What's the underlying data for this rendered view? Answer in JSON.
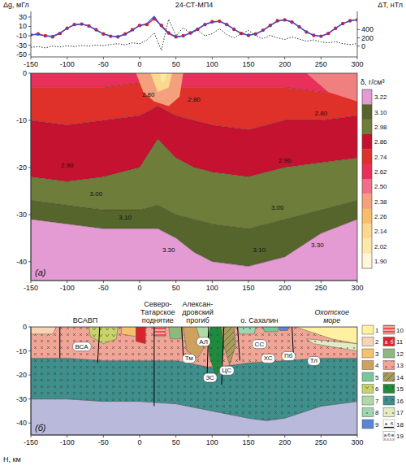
{
  "chart_data": [
    {
      "type": "line",
      "title": "24-СТ-МП4",
      "y_label": "Δg, мГл",
      "y2_label": "ΔT, нТл",
      "x": [
        -150,
        -140,
        -130,
        -120,
        -110,
        -100,
        -90,
        -80,
        -70,
        -60,
        -50,
        -40,
        -30,
        -20,
        -10,
        0,
        10,
        20,
        30,
        40,
        50,
        60,
        70,
        80,
        90,
        100,
        110,
        120,
        130,
        140,
        150,
        160,
        170,
        180,
        190,
        200,
        210,
        220,
        230,
        240,
        250,
        260,
        270,
        280,
        290,
        300
      ],
      "xlim": [
        -150,
        300
      ],
      "xticks": [
        -150,
        -100,
        -50,
        0,
        50,
        100,
        150,
        200,
        250,
        300
      ],
      "ylim": [
        -55,
        42
      ],
      "yticks": [
        -50,
        -30,
        -10,
        10,
        30
      ],
      "y2lim": [
        -260,
        840
      ],
      "y2ticks": [
        0,
        200,
        400
      ],
      "series": [
        {
          "color": "#e0202a",
          "marker": "circle",
          "line_style": "solid",
          "values": [
            -8,
            -6,
            -10,
            -12,
            -5,
            6,
            14,
            15,
            11,
            3,
            -6,
            -11,
            -12,
            -6,
            3,
            12,
            14,
            26,
            12,
            -4,
            -12,
            -10,
            -4,
            4,
            14,
            20,
            21,
            14,
            4,
            -5,
            -9,
            -6,
            2,
            12,
            22,
            24,
            19,
            9,
            -2,
            -9,
            -11,
            -5,
            6,
            16,
            22,
            24
          ]
        },
        {
          "color": "#2b50d8",
          "line_style": "solid",
          "values": [
            -8,
            -7,
            -10,
            -11,
            -4,
            6,
            13,
            15,
            11,
            2,
            -6,
            -10,
            -12,
            -7,
            2,
            12,
            16,
            31,
            10,
            -5,
            -13,
            -10,
            -4,
            5,
            14,
            19,
            21,
            14,
            4,
            -5,
            -9,
            -6,
            1,
            12,
            21,
            24,
            20,
            9,
            -2,
            -9,
            -11,
            -5,
            6,
            16,
            22,
            25
          ]
        },
        {
          "color": "#333333",
          "line_style": "dotted",
          "axis": "y2",
          "values": [
            -30,
            -10,
            -40,
            0,
            -20,
            10,
            -10,
            20,
            0,
            30,
            10,
            40,
            60,
            30,
            80,
            60,
            150,
            320,
            -100,
            650,
            250,
            450,
            300,
            380,
            250,
            300,
            420,
            280,
            200,
            300,
            380,
            250,
            180,
            260,
            200,
            160,
            220,
            170,
            120,
            150,
            100,
            80,
            110,
            60,
            40,
            60
          ]
        }
      ]
    },
    {
      "type": "section",
      "panel_label": "(а)",
      "xlim": [
        -150,
        300
      ],
      "xticks": [
        -150,
        -100,
        -50,
        0,
        50,
        100,
        150,
        200,
        250,
        300
      ],
      "ylim": [
        -44,
        0
      ],
      "yticks": [
        0,
        -10,
        -20,
        -30,
        -40
      ],
      "x": [
        -150,
        -100,
        -50,
        0,
        25,
        50,
        75,
        100,
        150,
        200,
        250,
        300
      ],
      "layers": [
        {
          "color": "#e8305a",
          "bottom": [
            -3,
            -3,
            -3,
            -2,
            -2,
            -3,
            -3,
            -3,
            -3,
            -3,
            -4,
            -4
          ]
        },
        {
          "color": "#e0302a",
          "bottom": [
            -10,
            -11,
            -10,
            -9,
            -7,
            -9,
            -10,
            -11,
            -12,
            -10,
            -10,
            -9
          ]
        },
        {
          "color": "#c41230",
          "bottom": [
            -22,
            -23,
            -22,
            -20,
            -14,
            -18,
            -20,
            -21,
            -22,
            -20,
            -19,
            -18
          ]
        },
        {
          "color": "#6f7d3a",
          "bottom": [
            -27,
            -28,
            -29,
            -29,
            -28,
            -30,
            -31,
            -32,
            -33,
            -31,
            -29,
            -27
          ]
        },
        {
          "color": "#56652c",
          "bottom": [
            -31,
            -32,
            -33,
            -33,
            -33,
            -35,
            -38,
            -40,
            -41,
            -39,
            -34,
            -31
          ]
        },
        {
          "color": "#e49ad2",
          "bottom": null
        }
      ],
      "patches": [
        {
          "color": "#f4a07c",
          "x": [
            -5,
            60,
            55,
            40,
            20,
            5
          ],
          "y": [
            0,
            0,
            -5,
            -7,
            -6,
            -4
          ]
        },
        {
          "color": "#fbd88e",
          "x": [
            15,
            45,
            40,
            25
          ],
          "y": [
            0,
            0,
            -3,
            -4
          ]
        },
        {
          "color": "#f08080",
          "x": [
            230,
            300,
            300,
            260
          ],
          "y": [
            0,
            0,
            -6,
            -4
          ]
        },
        {
          "color": "#fde8a8",
          "x": [
            28,
            38,
            35,
            30
          ],
          "y": [
            0,
            0,
            -1.5,
            -2
          ]
        }
      ],
      "contour_labels": [
        {
          "x": -100,
          "y": -20,
          "label": "2.90"
        },
        {
          "x": -60,
          "y": -26,
          "label": "3.00"
        },
        {
          "x": -20,
          "y": -31,
          "label": "3.10"
        },
        {
          "x": 40,
          "y": -38,
          "label": "3.30"
        },
        {
          "x": 12,
          "y": -5,
          "label": "2.80"
        },
        {
          "x": 75,
          "y": -6,
          "label": "2.80"
        },
        {
          "x": 200,
          "y": -19,
          "label": "2.90"
        },
        {
          "x": 250,
          "y": -9,
          "label": "2.80"
        },
        {
          "x": 190,
          "y": -29,
          "label": "3.00"
        },
        {
          "x": 165,
          "y": -38,
          "label": "3.10"
        },
        {
          "x": 245,
          "y": -37,
          "label": "3.30"
        }
      ],
      "colorbar": {
        "label": "δ, г/см³",
        "ticks": [
          3.22,
          {
            "value": 3.1,
            "label": "3.10"
          },
          2.98,
          2.86,
          2.74,
          2.62,
          {
            "value": 2.5,
            "label": "2.50"
          },
          2.38,
          2.26,
          2.14,
          2.02,
          {
            "value": 1.9,
            "label": "1.90"
          }
        ],
        "colors": [
          "#e49ad2",
          "#56652c",
          "#6f7d3a",
          "#c41230",
          "#e0302a",
          "#e8305a",
          "#ef6f8a",
          "#f4a07c",
          "#f7bd6a",
          "#fbd88e",
          "#fde8a8",
          "#fff6dc"
        ]
      }
    },
    {
      "type": "section",
      "panel_label": "(б)",
      "y_label": "H, км",
      "xlim": [
        -150,
        300
      ],
      "xticks": [
        -150,
        -100,
        -50,
        0,
        50,
        100,
        150,
        200,
        250,
        300
      ],
      "ylim": [
        -45,
        0
      ],
      "yticks": [
        0,
        -10,
        -20,
        -30,
        -40
      ],
      "regions": [
        {
          "lines": [
            "ВСАВП"
          ],
          "x": -75
        },
        {
          "lines": [
            "Северо-",
            "Татарское",
            "поднятие"
          ],
          "x": 25
        },
        {
          "lines": [
            "Алексан-",
            "дровский",
            "прогиб"
          ],
          "x": 80
        },
        {
          "lines": [
            "о. Сахалин"
          ],
          "x": 165
        },
        {
          "lines": [
            "Охотское",
            "море"
          ],
          "x": 265
        }
      ],
      "bodies": [
        {
          "color": "#b9b9dc",
          "x": [
            -150,
            -100,
            -50,
            0,
            50,
            100,
            150,
            175,
            200,
            250,
            300,
            300,
            -150
          ],
          "y": [
            -30,
            -30,
            -31,
            -31,
            -32,
            -35,
            -38,
            -39,
            -38,
            -33,
            -31,
            -45,
            -45
          ]
        },
        {
          "color": "#3f8f8c",
          "marker": "x",
          "x": [
            -150,
            -100,
            -50,
            0,
            50,
            100,
            150,
            200,
            250,
            300,
            300,
            250,
            200,
            175,
            150,
            100,
            50,
            0,
            -50,
            -100,
            -150
          ],
          "y": [
            -13,
            -13,
            -14,
            -14,
            -14,
            -17,
            -15,
            -14,
            -13,
            -13,
            -31,
            -33,
            -38,
            -39,
            -38,
            -35,
            -32,
            -31,
            -31,
            -30,
            -30
          ]
        },
        {
          "color": "#f0a596",
          "marker": "x",
          "x": [
            -150,
            300,
            300,
            250,
            200,
            150,
            100,
            50,
            0,
            -50,
            -100,
            -150
          ],
          "y": [
            0,
            0,
            -13,
            -13,
            -14,
            -15,
            -17,
            -14,
            -14,
            -14,
            -13,
            -13
          ]
        },
        {
          "color": "#f7d4b4",
          "x": [
            -150,
            -115,
            -120,
            -150
          ],
          "y": [
            0,
            0,
            -3,
            -3
          ]
        },
        {
          "color": "#c8d36a",
          "marker": "v",
          "x": [
            -70,
            -30,
            -32,
            -50,
            -68
          ],
          "y": [
            0,
            0,
            -5,
            -7,
            -4
          ]
        },
        {
          "color": "#f5c26a",
          "x": [
            -25,
            -5,
            -5,
            -25
          ],
          "y": [
            0,
            0,
            -4,
            -3
          ]
        },
        {
          "color": "#d9232d",
          "x": [
            -5,
            8,
            8,
            -5
          ],
          "y": [
            0,
            0,
            -7,
            -6
          ]
        },
        {
          "color": "#e8524f",
          "marker": "hline",
          "x": [
            20,
            35,
            35,
            20
          ],
          "y": [
            0,
            0,
            -4,
            -4
          ]
        },
        {
          "color": "#8fb87f",
          "x": [
            40,
            58,
            58,
            42
          ],
          "y": [
            0,
            0,
            -5,
            -5
          ]
        },
        {
          "color": "#cfa15e",
          "x": [
            60,
            85,
            88,
            80,
            65
          ],
          "y": [
            0,
            0,
            -9,
            -13,
            -10
          ]
        },
        {
          "color": "#b0d9a8",
          "x": [
            78,
            98,
            96,
            84
          ],
          "y": [
            0,
            0,
            -8,
            -6
          ]
        },
        {
          "color": "#1f8a3d",
          "marker": "dot",
          "x": [
            98,
            112,
            116,
            112,
            104,
            96,
            94
          ],
          "y": [
            0,
            0,
            -8,
            -18,
            -20,
            -12,
            -4
          ]
        },
        {
          "color": "#a79c5c",
          "marker": "hatch",
          "x": [
            112,
            130,
            132,
            124,
            116
          ],
          "y": [
            0,
            0,
            -8,
            -16,
            -8
          ]
        },
        {
          "color": "#9fd6b0",
          "marker": "dot",
          "x": [
            135,
            160,
            158,
            137
          ],
          "y": [
            0,
            0,
            -3,
            -3
          ]
        },
        {
          "color": "#7cc49a",
          "x": [
            170,
            192,
            190,
            172
          ],
          "y": [
            0,
            0,
            -2,
            -2
          ]
        },
        {
          "color": "#5b86d4",
          "x": [
            192,
            205,
            204,
            193
          ],
          "y": [
            0,
            0,
            -1.5,
            -1.5
          ]
        },
        {
          "color": "#e2ecc4",
          "marker": "dot",
          "x": [
            230,
            300,
            300,
            240
          ],
          "y": [
            -5,
            -7,
            -10,
            -7
          ]
        },
        {
          "color": "#fff1a0",
          "x": [
            215,
            300,
            300,
            265,
            235
          ],
          "y": [
            0,
            0,
            -7,
            -5,
            -2
          ]
        }
      ],
      "faults": [
        {
          "x": [
            -110,
            -110
          ],
          "y": [
            0,
            -13
          ]
        },
        {
          "x": [
            -55,
            -58
          ],
          "y": [
            0,
            -15
          ]
        },
        {
          "x": [
            20,
            20
          ],
          "y": [
            0,
            -33
          ]
        },
        {
          "x": [
            58,
            60
          ],
          "y": [
            0,
            -12
          ]
        },
        {
          "x": [
            95,
            93
          ],
          "y": [
            0,
            -20
          ]
        },
        {
          "x": [
            116,
            113
          ],
          "y": [
            0,
            -24
          ]
        },
        {
          "x": [
            135,
            138
          ],
          "y": [
            0,
            -14
          ]
        },
        {
          "x": [
            210,
            212
          ],
          "y": [
            0,
            -12
          ]
        }
      ],
      "labels": [
        {
          "text": "ВСА",
          "x": -80,
          "y": -8
        },
        {
          "text": "Тм",
          "x": 68,
          "y": -13
        },
        {
          "text": "АЛ",
          "x": 88,
          "y": -6
        },
        {
          "text": "ЗС",
          "x": 97,
          "y": -21
        },
        {
          "text": "ЦС",
          "x": 120,
          "y": -18
        },
        {
          "text": "СС",
          "x": 165,
          "y": -7
        },
        {
          "text": "ХС",
          "x": 177,
          "y": -13
        },
        {
          "text": "Пб",
          "x": 205,
          "y": -12
        },
        {
          "text": "Тл",
          "x": 240,
          "y": -14
        }
      ],
      "legend": "right",
      "keys": [
        {
          "name": "1",
          "color": "#fff1a0"
        },
        {
          "name": "2",
          "color": "#f7d4b4"
        },
        {
          "name": "3",
          "color": "#f5c26a"
        },
        {
          "name": "4",
          "color": "#cfa15e"
        },
        {
          "name": "5",
          "color": "#7cc49a"
        },
        {
          "name": "6",
          "color": "#c8d36a",
          "marker": "v"
        },
        {
          "name": "7",
          "color": "#b0d9a8"
        },
        {
          "name": "8",
          "color": "#9fd6b0",
          "marker": "dot"
        },
        {
          "name": "9",
          "color": "#5b86d4"
        },
        {
          "name": "10",
          "color": "#e8524f",
          "marker": "hline"
        },
        {
          "name": "11",
          "color": "#d9232d",
          "parts": [
            "а",
            "б"
          ]
        },
        {
          "name": "12",
          "color": "#8fb87f"
        },
        {
          "name": "13",
          "color": "#f0a596",
          "marker": "x"
        },
        {
          "name": "14",
          "color": "#a79c5c",
          "marker": "hatch"
        },
        {
          "name": "15",
          "color": "#1f8a3d",
          "marker": "dot"
        },
        {
          "name": "16",
          "color": "#3f8f8c",
          "marker": "x"
        },
        {
          "name": "17",
          "color": "#e2ecc4",
          "marker": "dot"
        },
        {
          "name": "18",
          "color": "#000000",
          "line_style": "solid",
          "parts": [
            "а",
            "б"
          ]
        },
        {
          "name": "19",
          "color": "#c0392b",
          "line_style": "dashed",
          "parts": [
            "а",
            "б",
            "в"
          ]
        }
      ]
    }
  ]
}
